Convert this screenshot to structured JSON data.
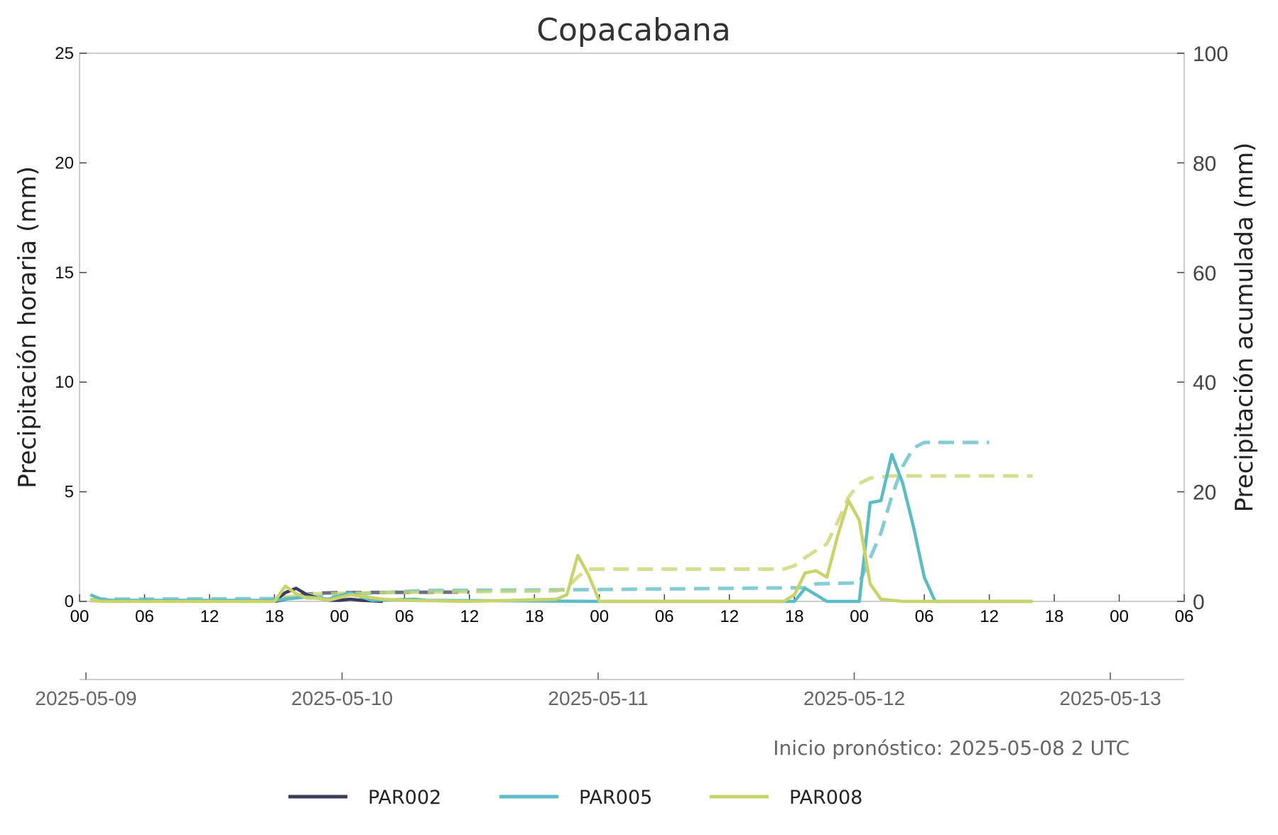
{
  "chart_data": {
    "type": "line",
    "title": "Copacabana",
    "ylabel_left": "Precipitación horaria (mm)",
    "ylabel_right": "Precipitación acumulada (mm)",
    "ylim_left": [
      0,
      25
    ],
    "ylim_right": [
      0,
      100
    ],
    "yticks_left": [
      "0",
      "5",
      "10",
      "15",
      "20",
      "25"
    ],
    "yticks_right": [
      "0",
      "20",
      "40",
      "60",
      "80",
      "100"
    ],
    "xlim": [
      "2025-05-09 00:00",
      "2025-05-13 06:00"
    ],
    "hour_ticks": [
      "00",
      "06",
      "12",
      "18",
      "00",
      "06",
      "12",
      "18",
      "00",
      "06",
      "12",
      "18",
      "00",
      "06",
      "12",
      "18",
      "00",
      "06"
    ],
    "date_ticks": [
      "2025-05-09",
      "2025-05-10",
      "2025-05-11",
      "2025-05-12",
      "2025-05-13"
    ],
    "note": "Inicio pronóstico: 2025-05-08 2 UTC",
    "grid": false,
    "legend_position": "bottom",
    "series": [
      {
        "name": "PAR002",
        "color": "#3a3d5c",
        "hourly": [
          [
            "2025-05-09 18:00",
            0
          ],
          [
            "2025-05-09 19:00",
            0.4
          ],
          [
            "2025-05-09 20:00",
            0.6
          ],
          [
            "2025-05-09 21:00",
            0.3
          ],
          [
            "2025-05-09 22:00",
            0.15
          ],
          [
            "2025-05-09 23:00",
            0.05
          ],
          [
            "2025-05-10 00:00",
            0.05
          ],
          [
            "2025-05-10 01:00",
            0.1
          ],
          [
            "2025-05-10 02:00",
            0.05
          ],
          [
            "2025-05-10 04:00",
            0
          ]
        ],
        "accumulated": [
          [
            "2025-05-09 18:00",
            0
          ],
          [
            "2025-05-09 19:00",
            0.4
          ],
          [
            "2025-05-09 20:00",
            1.0
          ],
          [
            "2025-05-09 21:00",
            1.3
          ],
          [
            "2025-05-09 22:00",
            1.5
          ],
          [
            "2025-05-10 00:00",
            1.6
          ],
          [
            "2025-05-10 12:00",
            1.7
          ],
          [
            "2025-05-10 12:00",
            1.7
          ]
        ]
      },
      {
        "name": "PAR005",
        "color": "#5bbcc6",
        "hourly": [
          [
            "2025-05-09 01:00",
            0.3
          ],
          [
            "2025-05-09 02:00",
            0.1
          ],
          [
            "2025-05-09 03:00",
            0.05
          ],
          [
            "2025-05-09 18:00",
            0.05
          ],
          [
            "2025-05-09 19:00",
            0.1
          ],
          [
            "2025-05-09 21:00",
            0.2
          ],
          [
            "2025-05-09 23:00",
            0.1
          ],
          [
            "2025-05-10 01:00",
            0.4
          ],
          [
            "2025-05-10 02:00",
            0.2
          ],
          [
            "2025-05-10 03:00",
            0.05
          ],
          [
            "2025-05-10 07:00",
            0.1
          ],
          [
            "2025-05-10 08:00",
            0.05
          ],
          [
            "2025-05-10 18:00",
            0.02
          ],
          [
            "2025-05-11 00:00",
            0
          ],
          [
            "2025-05-11 18:00",
            0
          ],
          [
            "2025-05-11 19:00",
            0.6
          ],
          [
            "2025-05-11 20:00",
            0.3
          ],
          [
            "2025-05-11 21:00",
            0
          ],
          [
            "2025-05-12 00:00",
            0
          ],
          [
            "2025-05-12 01:00",
            4.5
          ],
          [
            "2025-05-12 02:00",
            4.6
          ],
          [
            "2025-05-12 03:00",
            6.7
          ],
          [
            "2025-05-12 04:00",
            5.4
          ],
          [
            "2025-05-12 05:00",
            3.4
          ],
          [
            "2025-05-12 06:00",
            1.1
          ],
          [
            "2025-05-12 07:00",
            0
          ],
          [
            "2025-05-12 16:00",
            0
          ]
        ],
        "accumulated": [
          [
            "2025-05-09 01:00",
            0.3
          ],
          [
            "2025-05-09 02:00",
            0.4
          ],
          [
            "2025-05-09 18:00",
            0.5
          ],
          [
            "2025-05-09 22:00",
            0.9
          ],
          [
            "2025-05-10 01:00",
            1.3
          ],
          [
            "2025-05-10 03:00",
            1.5
          ],
          [
            "2025-05-10 08:00",
            2.0
          ],
          [
            "2025-05-10 20:00",
            2.1
          ],
          [
            "2025-05-11 19:00",
            2.5
          ],
          [
            "2025-05-11 20:00",
            3.2
          ],
          [
            "2025-05-12 00:00",
            3.4
          ],
          [
            "2025-05-12 01:00",
            7.9
          ],
          [
            "2025-05-12 02:00",
            12.5
          ],
          [
            "2025-05-12 03:00",
            19.2
          ],
          [
            "2025-05-12 04:00",
            24.6
          ],
          [
            "2025-05-12 05:00",
            28.0
          ],
          [
            "2025-05-12 06:00",
            29.0
          ],
          [
            "2025-05-12 12:00",
            29.0
          ]
        ]
      },
      {
        "name": "PAR008",
        "color": "#c8d46a",
        "hourly": [
          [
            "2025-05-09 01:00",
            0.1
          ],
          [
            "2025-05-09 02:00",
            0
          ],
          [
            "2025-05-09 18:00",
            0
          ],
          [
            "2025-05-09 19:00",
            0.7
          ],
          [
            "2025-05-09 20:00",
            0.35
          ],
          [
            "2025-05-09 21:00",
            0.15
          ],
          [
            "2025-05-09 22:00",
            0.15
          ],
          [
            "2025-05-09 23:00",
            0.05
          ],
          [
            "2025-05-10 01:00",
            0.3
          ],
          [
            "2025-05-10 04:00",
            0.1
          ],
          [
            "2025-05-10 06:00",
            0.05
          ],
          [
            "2025-05-10 12:00",
            0
          ],
          [
            "2025-05-10 20:00",
            0.1
          ],
          [
            "2025-05-10 21:00",
            0.3
          ],
          [
            "2025-05-10 22:00",
            2.1
          ],
          [
            "2025-05-10 23:00",
            1.2
          ],
          [
            "2025-05-11 00:00",
            0
          ],
          [
            "2025-05-11 17:00",
            0
          ],
          [
            "2025-05-11 18:00",
            0.3
          ],
          [
            "2025-05-11 19:00",
            1.3
          ],
          [
            "2025-05-11 20:00",
            1.4
          ],
          [
            "2025-05-11 21:00",
            1.1
          ],
          [
            "2025-05-11 22:00",
            3.0
          ],
          [
            "2025-05-11 23:00",
            4.6
          ],
          [
            "2025-05-12 00:00",
            3.7
          ],
          [
            "2025-05-12 01:00",
            0.8
          ],
          [
            "2025-05-12 02:00",
            0.1
          ],
          [
            "2025-05-12 04:00",
            0
          ],
          [
            "2025-05-12 16:00",
            0
          ]
        ],
        "accumulated": [
          [
            "2025-05-09 01:00",
            0.1
          ],
          [
            "2025-05-09 18:00",
            0.1
          ],
          [
            "2025-05-09 19:00",
            0.8
          ],
          [
            "2025-05-09 22:00",
            1.4
          ],
          [
            "2025-05-10 04:00",
            1.6
          ],
          [
            "2025-05-10 20:00",
            1.9
          ],
          [
            "2025-05-10 21:00",
            2.4
          ],
          [
            "2025-05-10 22:00",
            4.5
          ],
          [
            "2025-05-10 23:00",
            5.9
          ],
          [
            "2025-05-11 17:00",
            5.9
          ],
          [
            "2025-05-11 18:00",
            6.5
          ],
          [
            "2025-05-11 19:00",
            8.0
          ],
          [
            "2025-05-11 21:00",
            10.5
          ],
          [
            "2025-05-11 22:00",
            14.5
          ],
          [
            "2025-05-11 23:00",
            19.0
          ],
          [
            "2025-05-12 00:00",
            21.5
          ],
          [
            "2025-05-12 01:00",
            22.5
          ],
          [
            "2025-05-12 03:00",
            22.9
          ],
          [
            "2025-05-12 16:00",
            22.9
          ]
        ]
      }
    ]
  }
}
